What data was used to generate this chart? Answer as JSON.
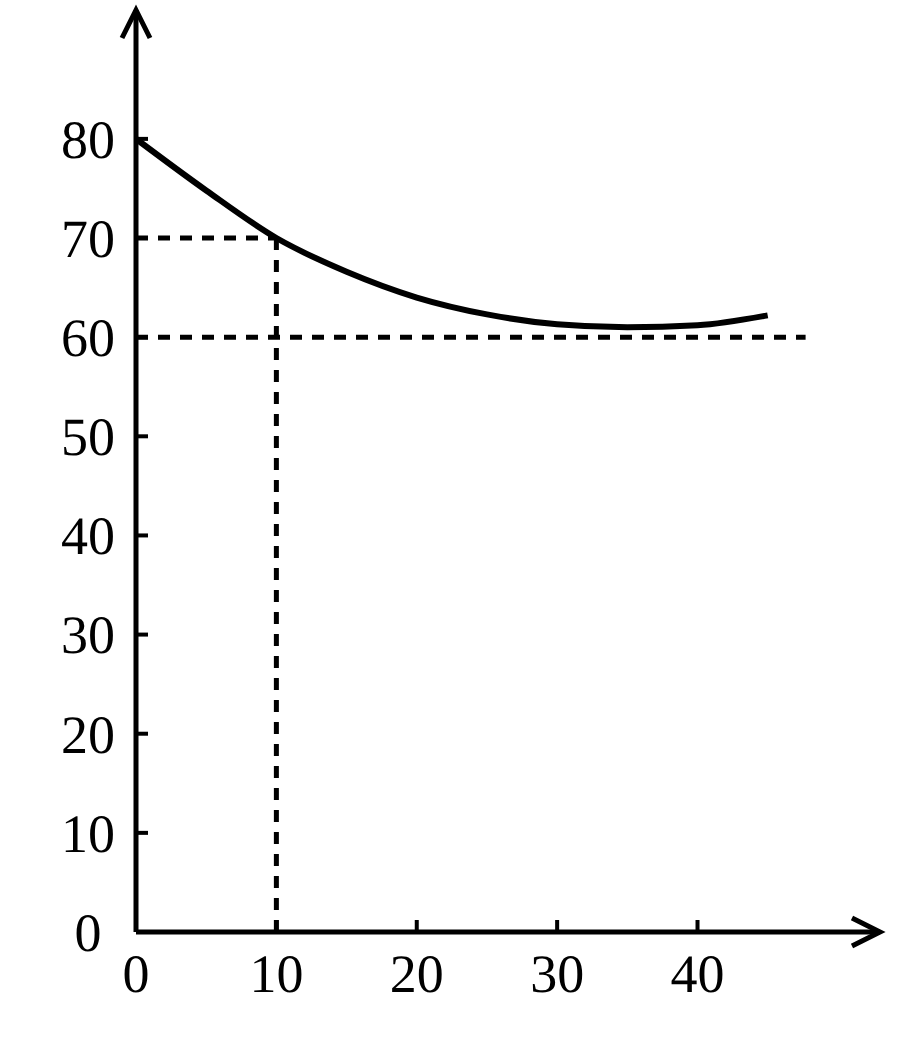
{
  "chart_data": {
    "type": "line",
    "x": [
      0,
      5,
      10,
      15,
      20,
      25,
      30,
      35,
      40,
      45
    ],
    "series": [
      {
        "color": "#000000",
        "values": [
          80,
          74.8,
          70,
          66.6,
          64,
          62.3,
          61.3,
          61,
          61.2,
          62.2
        ]
      }
    ],
    "xlim": [
      0,
      53
    ],
    "ylim": [
      0,
      93
    ],
    "xticks": [
      0,
      10,
      20,
      30,
      40
    ],
    "yticks": [
      0,
      10,
      20,
      30,
      40,
      50,
      60,
      70,
      80
    ],
    "ref_lines": [
      {
        "axis": "y",
        "value": 70,
        "line_style": "dashed",
        "color": "#000000"
      },
      {
        "axis": "x",
        "value": 10,
        "line_style": "dashed",
        "color": "#000000"
      },
      {
        "axis": "y",
        "value": 60,
        "line_style": "dashed",
        "color": "#000000"
      }
    ],
    "grid": false,
    "marker": "none",
    "line_style": "solid"
  }
}
